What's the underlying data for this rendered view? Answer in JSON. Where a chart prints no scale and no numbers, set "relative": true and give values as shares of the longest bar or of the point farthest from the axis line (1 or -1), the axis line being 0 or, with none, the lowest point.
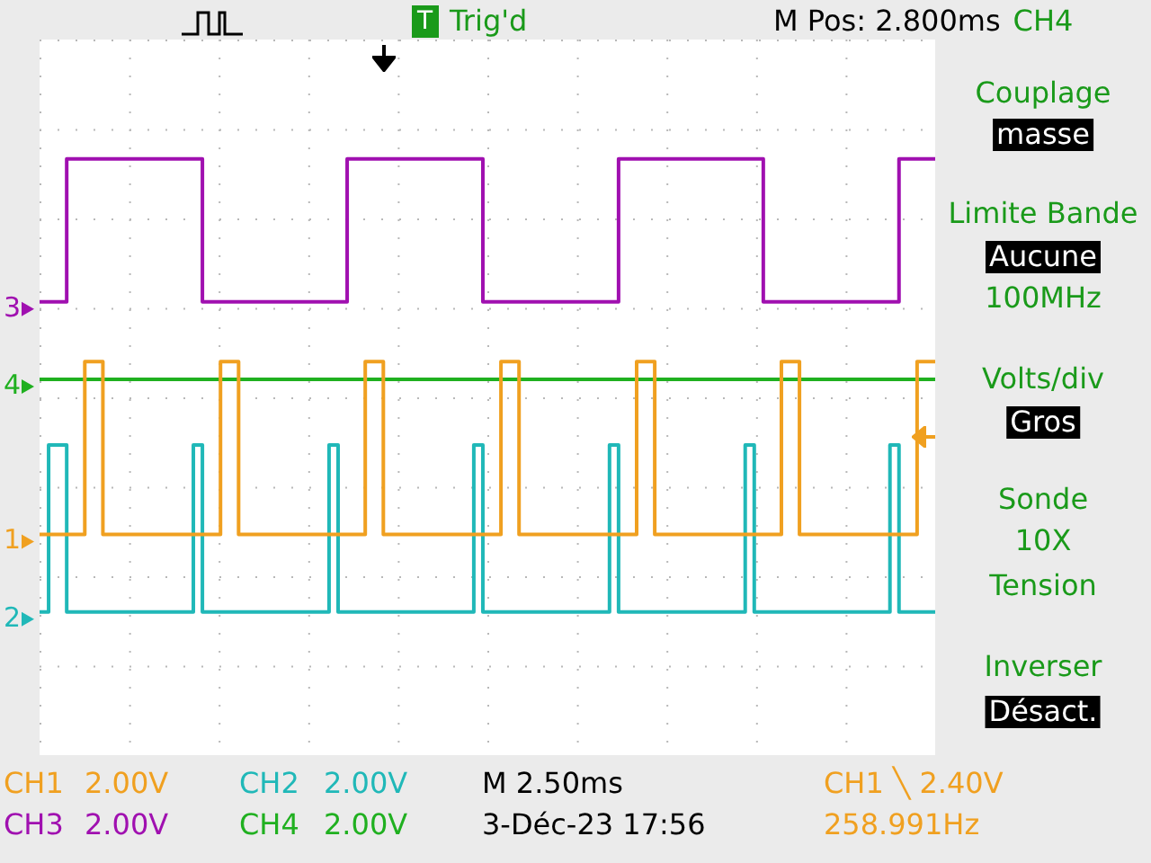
{
  "chart_data": {
    "type": "step",
    "relative": true,
    "grid": true,
    "legend": "left",
    "categories": [
      null,
      null,
      null,
      null,
      null,
      null,
      null,
      null,
      null,
      null,
      null,
      null,
      null,
      null,
      null,
      null,
      null,
      null,
      null,
      null,
      null,
      null,
      null,
      null,
      null,
      null,
      null,
      null,
      null,
      null,
      null,
      null,
      null,
      null,
      null,
      null,
      null,
      null,
      null,
      null,
      null,
      null,
      null,
      null,
      null,
      null,
      null,
      null,
      null,
      null,
      null,
      null,
      null,
      null,
      null,
      null,
      null,
      null,
      null,
      null,
      null,
      null,
      null,
      null,
      null,
      null,
      null,
      null,
      null,
      null,
      null,
      null,
      null,
      null,
      null,
      null,
      null,
      null,
      null,
      null,
      null,
      null,
      null,
      null,
      null,
      null,
      null,
      null,
      null,
      null,
      null,
      null,
      null,
      null,
      null,
      null,
      null,
      null,
      null,
      null
    ],
    "series": [
      {
        "name": "1",
        "color": "#f0a020",
        "values": [
          0.37,
          0.37,
          0.37,
          0.37,
          0.37,
          0.37,
          0.66,
          0.66,
          0.37,
          0.37,
          0.37,
          0.37,
          0.37,
          0.37,
          0.37,
          0.37,
          0.37,
          0.37,
          0.37,
          0.37,
          0.37,
          0.66,
          0.66,
          0.37,
          0.37,
          0.37,
          0.37,
          0.37,
          0.37,
          0.37,
          0.37,
          0.37,
          0.37,
          0.37,
          0.37,
          0.37,
          0.37,
          0.66,
          0.66,
          0.37,
          0.37,
          0.37,
          0.37,
          0.37,
          0.37,
          0.37,
          0.37,
          0.37,
          0.37,
          0.37,
          0.37,
          0.37,
          0.66,
          0.66,
          0.37,
          0.37,
          0.37,
          0.37,
          0.37,
          0.37,
          0.37,
          0.37,
          0.37,
          0.37,
          0.37,
          0.37,
          0.37,
          0.66,
          0.66,
          0.37,
          0.37,
          0.37,
          0.37,
          0.37,
          0.37,
          0.37,
          0.37,
          0.37,
          0.37,
          0.37,
          0.37,
          0.37,
          0.37,
          0.66,
          0.66,
          0.37,
          0.37,
          0.37,
          0.37,
          0.37,
          0.37,
          0.37,
          0.37,
          0.37,
          0.37,
          0.37,
          0.37,
          0.37,
          0.66,
          0.66
        ]
      },
      {
        "name": "2",
        "color": "#20b8b8",
        "values": [
          0.24,
          0.24,
          0.52,
          0.52,
          0.24,
          0.24,
          0.24,
          0.24,
          0.24,
          0.24,
          0.24,
          0.24,
          0.24,
          0.24,
          0.24,
          0.24,
          0.24,
          0.24,
          0.52,
          0.24,
          0.24,
          0.24,
          0.24,
          0.24,
          0.24,
          0.24,
          0.24,
          0.24,
          0.24,
          0.24,
          0.24,
          0.24,
          0.24,
          0.52,
          0.24,
          0.24,
          0.24,
          0.24,
          0.24,
          0.24,
          0.24,
          0.24,
          0.24,
          0.24,
          0.24,
          0.24,
          0.24,
          0.24,
          0.24,
          0.52,
          0.24,
          0.24,
          0.24,
          0.24,
          0.24,
          0.24,
          0.24,
          0.24,
          0.24,
          0.24,
          0.24,
          0.24,
          0.24,
          0.24,
          0.52,
          0.24,
          0.24,
          0.24,
          0.24,
          0.24,
          0.24,
          0.24,
          0.24,
          0.24,
          0.24,
          0.24,
          0.24,
          0.24,
          0.24,
          0.52,
          0.24,
          0.24,
          0.24,
          0.24,
          0.24,
          0.24,
          0.24,
          0.24,
          0.24,
          0.24,
          0.24,
          0.24,
          0.24,
          0.24,
          0.24,
          0.52,
          0.24,
          0.24,
          0.24,
          0.24
        ]
      },
      {
        "name": "3",
        "color": "#a010b0",
        "values": [
          0.76,
          0.76,
          0.76,
          0.76,
          1,
          1,
          1,
          1,
          1,
          1,
          1,
          1,
          1,
          1,
          1,
          1,
          1,
          1,
          1,
          0.76,
          0.76,
          0.76,
          0.76,
          0.76,
          0.76,
          0.76,
          0.76,
          0.76,
          0.76,
          0.76,
          0.76,
          0.76,
          0.76,
          0.76,
          0.76,
          1,
          1,
          1,
          1,
          1,
          1,
          1,
          1,
          1,
          1,
          1,
          1,
          1,
          1,
          1,
          0.76,
          0.76,
          0.76,
          0.76,
          0.76,
          0.76,
          0.76,
          0.76,
          0.76,
          0.76,
          0.76,
          0.76,
          0.76,
          0.76,
          0.76,
          1,
          1,
          1,
          1,
          1,
          1,
          1,
          1,
          1,
          1,
          1,
          1,
          1,
          1,
          1,
          1,
          0.76,
          0.76,
          0.76,
          0.76,
          0.76,
          0.76,
          0.76,
          0.76,
          0.76,
          0.76,
          0.76,
          0.76,
          0.76,
          0.76,
          0.76,
          1,
          1,
          1,
          1
        ]
      },
      {
        "name": "4",
        "color": "#20b020",
        "values": [
          0.63,
          0.63,
          0.63,
          0.63,
          0.63,
          0.63,
          0.63,
          0.63,
          0.63,
          0.63,
          0.63,
          0.63,
          0.63,
          0.63,
          0.63,
          0.63,
          0.63,
          0.63,
          0.63,
          0.63,
          0.63,
          0.63,
          0.63,
          0.63,
          0.63,
          0.63,
          0.63,
          0.63,
          0.63,
          0.63,
          0.63,
          0.63,
          0.63,
          0.63,
          0.63,
          0.63,
          0.63,
          0.63,
          0.63,
          0.63,
          0.63,
          0.63,
          0.63,
          0.63,
          0.63,
          0.63,
          0.63,
          0.63,
          0.63,
          0.63,
          0.63,
          0.63,
          0.63,
          0.63,
          0.63,
          0.63,
          0.63,
          0.63,
          0.63,
          0.63,
          0.63,
          0.63,
          0.63,
          0.63,
          0.63,
          0.63,
          0.63,
          0.63,
          0.63,
          0.63,
          0.63,
          0.63,
          0.63,
          0.63,
          0.63,
          0.63,
          0.63,
          0.63,
          0.63,
          0.63,
          0.63,
          0.63,
          0.63,
          0.63,
          0.63,
          0.63,
          0.63,
          0.63,
          0.63,
          0.63,
          0.63,
          0.63,
          0.63,
          0.63,
          0.63,
          0.63,
          0.63,
          0.63,
          0.63,
          0.63
        ]
      }
    ],
    "annotations": [
      "T",
      "Trig'd",
      "M Pos: 2.800ms",
      "CH4",
      "Couplage",
      "masse",
      "Limite Bande",
      "Aucune",
      "100MHz",
      "Volts/div",
      "Gros",
      "Sonde",
      "10X",
      "Tension",
      "Inverser",
      "Désact.",
      "CH1",
      "2.00V",
      "CH2",
      "2.00V",
      "M 2.50ms",
      "CH1 ╲ 2.40V",
      "CH3",
      "2.00V",
      "CH4",
      "2.00V",
      "3-Déc-23 17:56",
      "258.991Hz"
    ]
  }
}
